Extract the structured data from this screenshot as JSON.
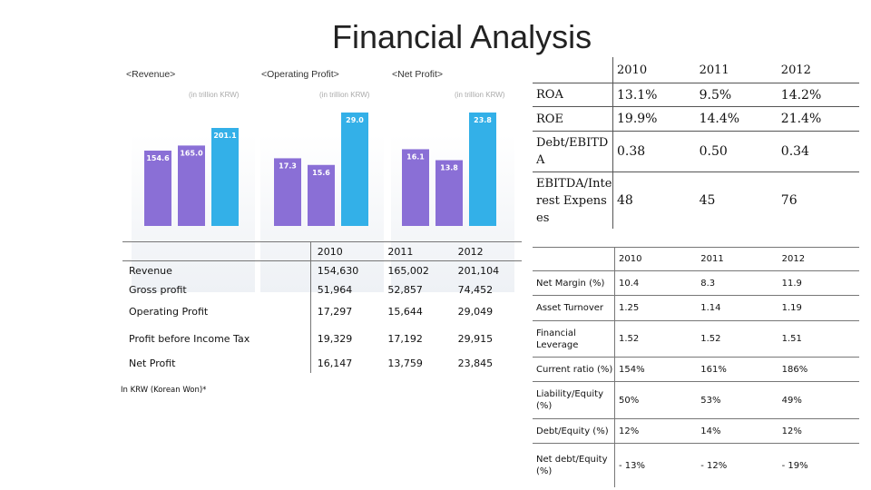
{
  "title": "Financial Analysis",
  "charts": {
    "colors": {
      "purple": "#8a6fd6",
      "blue": "#33b0e8"
    },
    "unit": "(in trillion KRW)",
    "revenue": {
      "label": "<Revenue>",
      "values": [
        154.6,
        165.0,
        201.1
      ],
      "labels": [
        "154.6",
        "165.0",
        "201.1"
      ]
    },
    "operating_profit": {
      "label": "<Operating Profit>",
      "values": [
        17.3,
        15.6,
        29.0
      ],
      "labels": [
        "17.3",
        "15.6",
        "29.0"
      ]
    },
    "net_profit": {
      "label": "<Net Profit>",
      "values": [
        16.1,
        13.8,
        23.8
      ],
      "labels": [
        "16.1",
        "13.8",
        "23.8"
      ]
    }
  },
  "income_table": {
    "years": [
      "2010",
      "2011",
      "2012"
    ],
    "rows": [
      {
        "label": "Revenue",
        "values": [
          "154,630",
          "165,002",
          "201,104"
        ]
      },
      {
        "label": "Gross profit",
        "values": [
          "51,964",
          "52,857",
          "74,452"
        ]
      },
      {
        "label": "Operating Profit",
        "values": [
          "17,297",
          "15,644",
          "29,049"
        ]
      },
      {
        "label": "Profit before Income Tax",
        "values": [
          "19,329",
          "17,192",
          "29,915"
        ]
      },
      {
        "label": "Net Profit",
        "values": [
          "16,147",
          "13,759",
          "23,845"
        ]
      }
    ],
    "footnote": "In KRW (Korean Won)*"
  },
  "ratio_table": {
    "years": [
      "2010",
      "2011",
      "2012"
    ],
    "rows": [
      {
        "label": "ROA",
        "values": [
          "13.1%",
          "9.5%",
          "14.2%"
        ]
      },
      {
        "label": "ROE",
        "values": [
          "19.9%",
          "14.4%",
          "21.4%"
        ]
      },
      {
        "label": "Debt/EBITDA",
        "values": [
          "0.38",
          "0.50",
          "0.34"
        ]
      },
      {
        "label": "EBITDA/Interest Expenses",
        "values": [
          "48",
          "45",
          "76"
        ]
      }
    ]
  },
  "management_table": {
    "years": [
      "2010",
      "2011",
      "2012"
    ],
    "rows": [
      {
        "label": "Net Margin (%)",
        "values": [
          "10.4",
          "8.3",
          "11.9"
        ]
      },
      {
        "label": "Asset Turnover",
        "values": [
          "1.25",
          "1.14",
          "1.19"
        ]
      },
      {
        "label": "Financial Leverage",
        "values": [
          "1.52",
          "1.52",
          "1.51"
        ]
      },
      {
        "label": "Current ratio (%)",
        "values": [
          "154%",
          "161%",
          "186%"
        ]
      },
      {
        "label": "Liability/Equity (%)",
        "values": [
          "50%",
          "53%",
          "49%"
        ]
      },
      {
        "label": "Debt/Equity (%)",
        "values": [
          "12%",
          "14%",
          "12%"
        ]
      },
      {
        "label": "Net debt/Equity (%)",
        "values": [
          "- 13%",
          "- 12%",
          "- 19%"
        ]
      }
    ]
  }
}
